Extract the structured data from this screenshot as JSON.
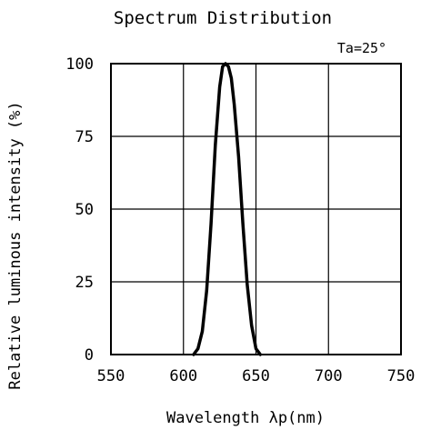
{
  "chart_data": {
    "type": "line",
    "title": "Spectrum Distribution",
    "condition": "Ta=25°",
    "xlabel": "Wavelength λp(nm)",
    "ylabel": "Relative luminous intensity (%)",
    "xlim": [
      550,
      750
    ],
    "ylim": [
      0,
      100
    ],
    "xticks": [
      550,
      600,
      650,
      700,
      750
    ],
    "yticks": [
      0,
      25,
      50,
      75,
      100
    ],
    "xtick_labels": [
      "550",
      "600",
      "650",
      "700",
      "750"
    ],
    "ytick_labels": [
      "0",
      "25",
      "50",
      "75",
      "100"
    ],
    "grid": true,
    "series": [
      {
        "x": [
          607,
          610,
          613,
          616,
          619,
          622,
          625,
          627,
          629,
          631,
          633,
          635,
          638,
          641,
          644,
          647,
          650,
          653
        ],
        "y": [
          0,
          2,
          8,
          22,
          45,
          72,
          92,
          99,
          100,
          99,
          95,
          86,
          68,
          45,
          24,
          10,
          2,
          0
        ]
      }
    ]
  },
  "colors": {
    "line": "#000000",
    "grid": "#000000",
    "background": "#ffffff"
  }
}
